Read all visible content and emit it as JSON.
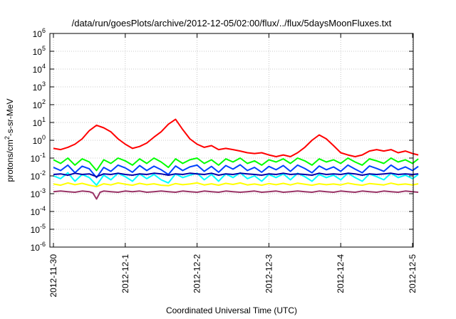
{
  "chart_data": {
    "type": "line",
    "title": "/data/run/goesPlots/archive/2012-12-05/02:00/flux/../flux/5daysMoonFluxes.txt",
    "xlabel": "Coordinated Universal Time (UTC)",
    "ylabel": {
      "prefix": "protons/cm",
      "sup": "2",
      "suffix": "-s-sr-MeV"
    },
    "y_scale": "log",
    "ylim": [
      1e-06,
      1000000.0
    ],
    "y_ticks": [
      {
        "base": "10",
        "exp": "-6",
        "value": 1e-06
      },
      {
        "base": "10",
        "exp": "-5",
        "value": 1e-05
      },
      {
        "base": "10",
        "exp": "-4",
        "value": 0.0001
      },
      {
        "base": "10",
        "exp": "-3",
        "value": 0.001
      },
      {
        "base": "10",
        "exp": "-2",
        "value": 0.01
      },
      {
        "base": "10",
        "exp": "-1",
        "value": 0.1
      },
      {
        "base": "10",
        "exp": "0",
        "value": 1
      },
      {
        "base": "10",
        "exp": "1",
        "value": 10
      },
      {
        "base": "10",
        "exp": "2",
        "value": 100
      },
      {
        "base": "10",
        "exp": "3",
        "value": 1000
      },
      {
        "base": "10",
        "exp": "4",
        "value": 10000
      },
      {
        "base": "10",
        "exp": "5",
        "value": 100000
      },
      {
        "base": "10",
        "exp": "6",
        "value": 1000000
      }
    ],
    "xlim": [
      "2012-11-30",
      "2012-12-05 02:00"
    ],
    "x_ticks": [
      "2012-11-30",
      "2012-12-1",
      "2012-12-2",
      "2012-12-3",
      "2012-12-4",
      "2012-12-5"
    ],
    "grid": true,
    "series": [
      {
        "color": "#ff0000",
        "x": [
          0.0,
          0.1,
          0.2,
          0.3,
          0.4,
          0.5,
          0.6,
          0.7,
          0.8,
          0.9,
          1.0,
          1.1,
          1.2,
          1.3,
          1.4,
          1.5,
          1.6,
          1.7,
          1.8,
          1.9,
          2.0,
          2.1,
          2.2,
          2.3,
          2.4,
          2.5,
          2.6,
          2.7,
          2.8,
          2.9,
          3.0,
          3.1,
          3.2,
          3.3,
          3.4,
          3.5,
          3.6,
          3.7,
          3.8,
          3.9,
          4.0,
          4.1,
          4.2,
          4.3,
          4.4,
          4.5,
          4.6,
          4.7,
          4.8,
          4.9,
          5.0,
          5.08
        ],
        "y": [
          0.35,
          0.3,
          0.4,
          0.6,
          1.2,
          3.5,
          7.0,
          5.0,
          3.0,
          1.2,
          0.6,
          0.35,
          0.45,
          0.7,
          1.5,
          3.0,
          8.0,
          15.0,
          4.0,
          1.2,
          0.6,
          0.4,
          0.5,
          0.3,
          0.35,
          0.3,
          0.25,
          0.2,
          0.18,
          0.2,
          0.15,
          0.12,
          0.15,
          0.12,
          0.2,
          0.4,
          1.0,
          2.0,
          1.2,
          0.5,
          0.2,
          0.15,
          0.12,
          0.15,
          0.25,
          0.3,
          0.25,
          0.3,
          0.2,
          0.25,
          0.18,
          0.15
        ]
      },
      {
        "color": "#00ff00",
        "x": [
          0.0,
          0.1,
          0.2,
          0.3,
          0.4,
          0.5,
          0.6,
          0.7,
          0.8,
          0.9,
          1.0,
          1.1,
          1.2,
          1.3,
          1.4,
          1.5,
          1.6,
          1.7,
          1.8,
          1.9,
          2.0,
          2.1,
          2.2,
          2.3,
          2.4,
          2.5,
          2.6,
          2.7,
          2.8,
          2.9,
          3.0,
          3.1,
          3.2,
          3.3,
          3.4,
          3.5,
          3.6,
          3.7,
          3.8,
          3.9,
          4.0,
          4.1,
          4.2,
          4.3,
          4.4,
          4.5,
          4.6,
          4.7,
          4.8,
          4.9,
          5.0,
          5.08
        ],
        "y": [
          0.08,
          0.05,
          0.1,
          0.04,
          0.09,
          0.06,
          0.02,
          0.08,
          0.05,
          0.1,
          0.07,
          0.04,
          0.09,
          0.05,
          0.1,
          0.06,
          0.03,
          0.09,
          0.05,
          0.08,
          0.1,
          0.05,
          0.08,
          0.04,
          0.09,
          0.06,
          0.1,
          0.05,
          0.07,
          0.04,
          0.08,
          0.06,
          0.09,
          0.05,
          0.1,
          0.07,
          0.04,
          0.09,
          0.06,
          0.08,
          0.05,
          0.1,
          0.06,
          0.04,
          0.09,
          0.07,
          0.05,
          0.1,
          0.06,
          0.08,
          0.05,
          0.09
        ]
      },
      {
        "color": "#00ffff",
        "x": [
          0.0,
          0.1,
          0.2,
          0.3,
          0.4,
          0.5,
          0.6,
          0.7,
          0.8,
          0.9,
          1.0,
          1.1,
          1.2,
          1.3,
          1.4,
          1.5,
          1.6,
          1.7,
          1.8,
          1.9,
          2.0,
          2.1,
          2.2,
          2.3,
          2.4,
          2.5,
          2.6,
          2.7,
          2.8,
          2.9,
          3.0,
          3.1,
          3.2,
          3.3,
          3.4,
          3.5,
          3.6,
          3.7,
          3.8,
          3.9,
          4.0,
          4.1,
          4.2,
          4.3,
          4.4,
          4.5,
          4.6,
          4.7,
          4.8,
          4.9,
          5.0,
          5.08
        ],
        "y": [
          0.01,
          0.007,
          0.015,
          0.005,
          0.012,
          0.008,
          0.003,
          0.011,
          0.006,
          0.014,
          0.009,
          0.005,
          0.013,
          0.007,
          0.012,
          0.006,
          0.004,
          0.013,
          0.008,
          0.011,
          0.014,
          0.006,
          0.012,
          0.005,
          0.013,
          0.008,
          0.015,
          0.007,
          0.01,
          0.005,
          0.012,
          0.008,
          0.013,
          0.006,
          0.014,
          0.009,
          0.005,
          0.012,
          0.008,
          0.011,
          0.006,
          0.014,
          0.008,
          0.005,
          0.013,
          0.009,
          0.006,
          0.014,
          0.008,
          0.011,
          0.007,
          0.012
        ]
      },
      {
        "color": "#0044ff",
        "x": [
          0.0,
          0.1,
          0.2,
          0.3,
          0.4,
          0.5,
          0.6,
          0.7,
          0.8,
          0.9,
          1.0,
          1.1,
          1.2,
          1.3,
          1.4,
          1.5,
          1.6,
          1.7,
          1.8,
          1.9,
          2.0,
          2.1,
          2.2,
          2.3,
          2.4,
          2.5,
          2.6,
          2.7,
          2.8,
          2.9,
          3.0,
          3.1,
          3.2,
          3.3,
          3.4,
          3.5,
          3.6,
          3.7,
          3.8,
          3.9,
          4.0,
          4.1,
          4.2,
          4.3,
          4.4,
          4.5,
          4.6,
          4.7,
          4.8,
          4.9,
          5.0,
          5.08
        ],
        "y": [
          0.03,
          0.02,
          0.04,
          0.015,
          0.035,
          0.025,
          0.008,
          0.03,
          0.018,
          0.04,
          0.028,
          0.016,
          0.038,
          0.02,
          0.035,
          0.022,
          0.012,
          0.036,
          0.02,
          0.032,
          0.04,
          0.018,
          0.034,
          0.016,
          0.038,
          0.024,
          0.042,
          0.02,
          0.03,
          0.016,
          0.034,
          0.022,
          0.038,
          0.018,
          0.04,
          0.026,
          0.015,
          0.036,
          0.022,
          0.032,
          0.018,
          0.04,
          0.024,
          0.015,
          0.036,
          0.026,
          0.018,
          0.04,
          0.022,
          0.032,
          0.02,
          0.034
        ]
      },
      {
        "color": "#0000aa",
        "x": [
          0.0,
          0.1,
          0.2,
          0.3,
          0.4,
          0.5,
          0.6,
          0.7,
          0.8,
          0.9,
          1.0,
          1.1,
          1.2,
          1.3,
          1.4,
          1.5,
          1.6,
          1.7,
          1.8,
          1.9,
          2.0,
          2.1,
          2.2,
          2.3,
          2.4,
          2.5,
          2.6,
          2.7,
          2.8,
          2.9,
          3.0,
          3.1,
          3.2,
          3.3,
          3.4,
          3.5,
          3.6,
          3.7,
          3.8,
          3.9,
          4.0,
          4.1,
          4.2,
          4.3,
          4.4,
          4.5,
          4.6,
          4.7,
          4.8,
          4.9,
          5.0,
          5.08
        ],
        "y": [
          0.012,
          0.013,
          0.011,
          0.014,
          0.012,
          0.013,
          0.009,
          0.013,
          0.012,
          0.014,
          0.012,
          0.011,
          0.013,
          0.012,
          0.014,
          0.013,
          0.011,
          0.013,
          0.012,
          0.014,
          0.013,
          0.012,
          0.014,
          0.011,
          0.013,
          0.012,
          0.014,
          0.013,
          0.012,
          0.011,
          0.013,
          0.012,
          0.014,
          0.012,
          0.013,
          0.012,
          0.011,
          0.014,
          0.012,
          0.013,
          0.012,
          0.014,
          0.013,
          0.011,
          0.013,
          0.012,
          0.013,
          0.014,
          0.012,
          0.013,
          0.012,
          0.013
        ]
      },
      {
        "color": "#ffff00",
        "x": [
          0.0,
          0.1,
          0.2,
          0.3,
          0.4,
          0.5,
          0.6,
          0.7,
          0.8,
          0.9,
          1.0,
          1.1,
          1.2,
          1.3,
          1.4,
          1.5,
          1.6,
          1.7,
          1.8,
          1.9,
          2.0,
          2.1,
          2.2,
          2.3,
          2.4,
          2.5,
          2.6,
          2.7,
          2.8,
          2.9,
          3.0,
          3.1,
          3.2,
          3.3,
          3.4,
          3.5,
          3.6,
          3.7,
          3.8,
          3.9,
          4.0,
          4.1,
          4.2,
          4.3,
          4.4,
          4.5,
          4.6,
          4.7,
          4.8,
          4.9,
          5.0,
          5.08
        ],
        "y": [
          0.0035,
          0.003,
          0.004,
          0.0032,
          0.0038,
          0.003,
          0.0025,
          0.0036,
          0.0031,
          0.004,
          0.0034,
          0.003,
          0.0038,
          0.0032,
          0.0036,
          0.003,
          0.0028,
          0.0037,
          0.0032,
          0.0035,
          0.004,
          0.0031,
          0.0036,
          0.003,
          0.0038,
          0.0033,
          0.004,
          0.0031,
          0.0035,
          0.003,
          0.0037,
          0.0032,
          0.0038,
          0.0031,
          0.0039,
          0.0034,
          0.003,
          0.0036,
          0.0032,
          0.0035,
          0.0031,
          0.0039,
          0.0033,
          0.003,
          0.0037,
          0.0034,
          0.0031,
          0.0039,
          0.0032,
          0.0035,
          0.0031,
          0.0036
        ]
      },
      {
        "color": "#993366",
        "x": [
          0.0,
          0.1,
          0.2,
          0.3,
          0.4,
          0.5,
          0.55,
          0.6,
          0.65,
          0.7,
          0.8,
          0.9,
          1.0,
          1.1,
          1.2,
          1.3,
          1.4,
          1.5,
          1.6,
          1.7,
          1.8,
          1.9,
          2.0,
          2.1,
          2.2,
          2.3,
          2.4,
          2.5,
          2.6,
          2.7,
          2.8,
          2.9,
          3.0,
          3.1,
          3.2,
          3.3,
          3.4,
          3.5,
          3.6,
          3.7,
          3.8,
          3.9,
          4.0,
          4.1,
          4.2,
          4.3,
          4.4,
          4.5,
          4.6,
          4.7,
          4.8,
          4.9,
          5.0,
          5.08
        ],
        "y": [
          0.0013,
          0.0014,
          0.0013,
          0.0012,
          0.0014,
          0.0013,
          0.0011,
          0.0005,
          0.0012,
          0.0014,
          0.0013,
          0.0012,
          0.0014,
          0.0013,
          0.0014,
          0.0012,
          0.0013,
          0.0014,
          0.0013,
          0.0012,
          0.0014,
          0.0013,
          0.0012,
          0.0014,
          0.0013,
          0.0012,
          0.0014,
          0.0013,
          0.0012,
          0.0013,
          0.0014,
          0.0012,
          0.0013,
          0.0014,
          0.0012,
          0.0013,
          0.0014,
          0.0013,
          0.0012,
          0.0014,
          0.0013,
          0.0012,
          0.0014,
          0.0013,
          0.0012,
          0.0014,
          0.0013,
          0.0012,
          0.0014,
          0.0013,
          0.0012,
          0.0014,
          0.0013,
          0.0012
        ]
      }
    ]
  }
}
